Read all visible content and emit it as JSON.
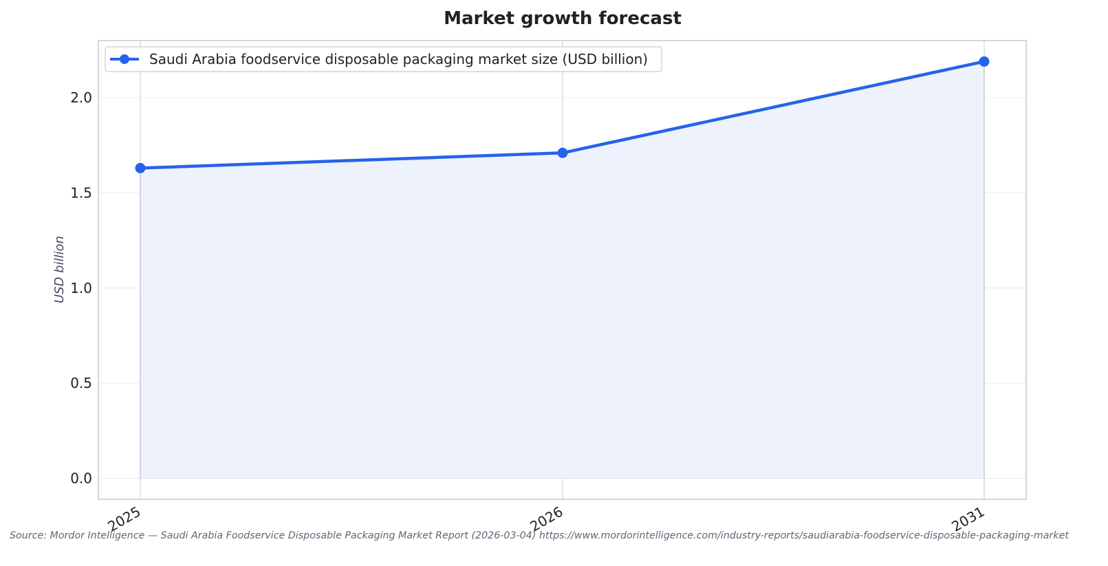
{
  "chart_data": {
    "type": "line",
    "title": "Market growth forecast",
    "xlabel": "",
    "ylabel": "USD billion",
    "categories": [
      "2025",
      "2026",
      "2031"
    ],
    "series": [
      {
        "name": "Saudi Arabia foodservice disposable packaging market size (USD billion)",
        "values": [
          1.63,
          1.71,
          2.19
        ],
        "color": "#2563eb"
      }
    ],
    "ylim": [
      -0.11,
      2.3
    ],
    "yticks": [
      "0.0",
      "0.5",
      "1.0",
      "1.5",
      "2.0"
    ],
    "area_fill": true,
    "fill_color": "#edf2fc",
    "grid": true,
    "legend_position": "top-left"
  },
  "source_note": "Source: Mordor Intelligence — Saudi Arabia Foodservice Disposable Packaging Market Report (2026-03-04) https://www.mordorintelligence.com/industry-reports/saudiarabia-foodservice-disposable-packaging-market"
}
